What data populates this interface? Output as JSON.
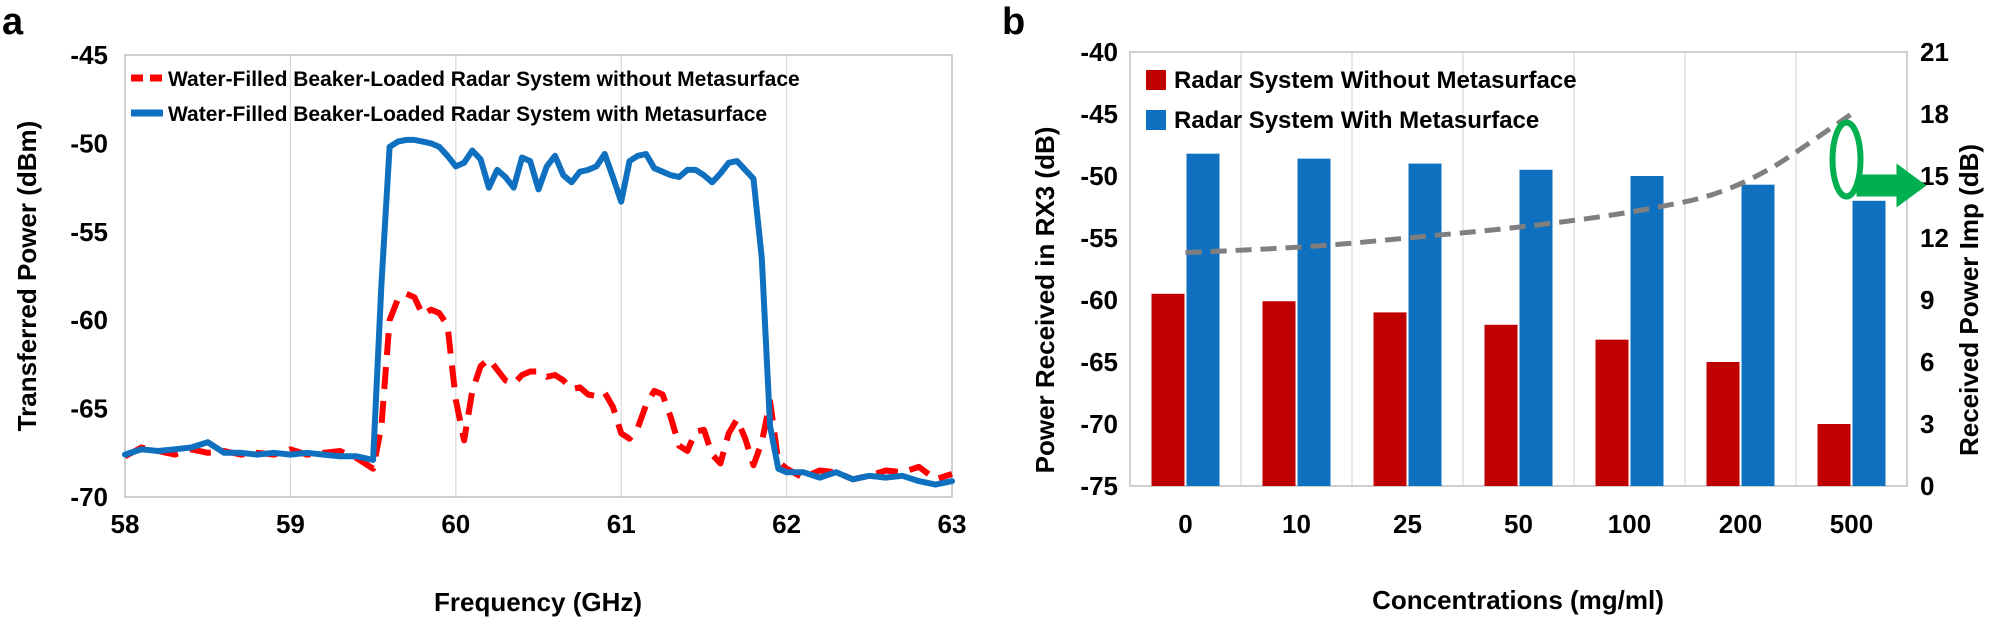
{
  "chart_data": [
    {
      "panel_label": "a",
      "type": "line",
      "xlabel": "Frequency (GHz)",
      "ylabel": "Transferred Power (dBm)",
      "xlim": [
        58,
        63
      ],
      "ylim": [
        -70,
        -45
      ],
      "xticks": [
        58,
        59,
        60,
        61,
        62,
        63
      ],
      "yticks": [
        -70,
        -65,
        -60,
        -55,
        -50,
        -45
      ],
      "grid": "vertical",
      "legend_position": "top",
      "series": [
        {
          "name": "Water-Filled Beaker-Loaded Radar System without Metasurface",
          "color": "#ff0000",
          "dash": "dashed",
          "x": [
            58.0,
            58.1,
            58.2,
            58.3,
            58.4,
            58.5,
            58.6,
            58.7,
            58.8,
            58.9,
            59.0,
            59.1,
            59.2,
            59.3,
            59.4,
            59.5,
            59.55,
            59.6,
            59.65,
            59.7,
            59.75,
            59.8,
            59.85,
            59.9,
            59.95,
            60.0,
            60.05,
            60.1,
            60.15,
            60.2,
            60.25,
            60.3,
            60.35,
            60.4,
            60.45,
            60.5,
            60.55,
            60.6,
            60.65,
            60.7,
            60.75,
            60.8,
            60.85,
            60.9,
            60.95,
            61.0,
            61.05,
            61.1,
            61.15,
            61.2,
            61.25,
            61.3,
            61.35,
            61.4,
            61.45,
            61.5,
            61.55,
            61.6,
            61.65,
            61.7,
            61.75,
            61.8,
            61.85,
            61.9,
            61.95,
            62.0,
            62.1,
            62.2,
            62.3,
            62.4,
            62.5,
            62.6,
            62.7,
            62.8,
            62.9,
            63.0
          ],
          "y": [
            -67.7,
            -67.2,
            -67.4,
            -67.6,
            -67.3,
            -67.5,
            -67.4,
            -67.6,
            -67.5,
            -67.6,
            -67.3,
            -67.6,
            -67.5,
            -67.4,
            -67.8,
            -68.4,
            -66.0,
            -60.0,
            -58.8,
            -58.5,
            -58.7,
            -59.7,
            -59.4,
            -59.6,
            -60.3,
            -64.5,
            -66.8,
            -64.0,
            -62.6,
            -62.2,
            -62.8,
            -63.4,
            -63.6,
            -63.1,
            -62.9,
            -62.9,
            -63.2,
            -63.1,
            -63.4,
            -63.9,
            -63.8,
            -64.2,
            -64.3,
            -64.1,
            -64.9,
            -66.4,
            -66.7,
            -66.1,
            -64.8,
            -64.0,
            -64.2,
            -65.5,
            -67.1,
            -67.4,
            -66.3,
            -66.2,
            -67.6,
            -68.1,
            -66.4,
            -65.6,
            -66.7,
            -68.2,
            -66.9,
            -64.6,
            -68.0,
            -68.4,
            -68.9,
            -68.5,
            -68.6,
            -69.0,
            -68.8,
            -68.5,
            -68.6,
            -68.3,
            -69.0,
            -68.7
          ]
        },
        {
          "name": "Water-Filled Beaker-Loaded Radar System with Metasurface",
          "color": "#1070c0",
          "dash": "solid",
          "x": [
            58.0,
            58.1,
            58.2,
            58.3,
            58.4,
            58.5,
            58.6,
            58.7,
            58.8,
            58.9,
            59.0,
            59.1,
            59.2,
            59.3,
            59.4,
            59.5,
            59.55,
            59.6,
            59.65,
            59.7,
            59.75,
            59.8,
            59.85,
            59.9,
            59.95,
            60.0,
            60.05,
            60.1,
            60.15,
            60.2,
            60.25,
            60.3,
            60.35,
            60.4,
            60.45,
            60.5,
            60.55,
            60.6,
            60.65,
            60.7,
            60.75,
            60.8,
            60.85,
            60.9,
            60.95,
            61.0,
            61.05,
            61.1,
            61.15,
            61.2,
            61.25,
            61.3,
            61.35,
            61.4,
            61.45,
            61.5,
            61.55,
            61.6,
            61.65,
            61.7,
            61.75,
            61.8,
            61.85,
            61.9,
            61.95,
            62.0,
            62.1,
            62.2,
            62.3,
            62.4,
            62.5,
            62.6,
            62.7,
            62.8,
            62.9,
            63.0
          ],
          "y": [
            -67.6,
            -67.3,
            -67.4,
            -67.3,
            -67.2,
            -66.9,
            -67.5,
            -67.5,
            -67.6,
            -67.5,
            -67.6,
            -67.5,
            -67.6,
            -67.7,
            -67.7,
            -67.9,
            -58.0,
            -50.2,
            -49.9,
            -49.8,
            -49.8,
            -49.9,
            -50.0,
            -50.2,
            -50.7,
            -51.3,
            -51.1,
            -50.4,
            -50.9,
            -52.5,
            -51.5,
            -51.9,
            -52.5,
            -50.8,
            -51.0,
            -52.6,
            -51.3,
            -50.7,
            -51.8,
            -52.2,
            -51.6,
            -51.5,
            -51.3,
            -50.6,
            -51.9,
            -53.3,
            -51.0,
            -50.7,
            -50.6,
            -51.4,
            -51.6,
            -51.8,
            -51.9,
            -51.5,
            -51.5,
            -51.8,
            -52.2,
            -51.7,
            -51.1,
            -51.0,
            -51.5,
            -52.0,
            -56.5,
            -66.0,
            -68.4,
            -68.6,
            -68.6,
            -68.9,
            -68.6,
            -69.0,
            -68.8,
            -68.9,
            -68.8,
            -69.1,
            -69.3,
            -69.1
          ]
        }
      ]
    },
    {
      "panel_label": "b",
      "type": "bar",
      "xlabel": "Concentrations (mg/ml)",
      "ylabel": "Power Received in RX3 (dB)",
      "y2label": "Received Power Imp (dB)",
      "ylim": [
        -75,
        -40
      ],
      "yticks": [
        -75,
        -70,
        -65,
        -60,
        -55,
        -50,
        -45,
        -40
      ],
      "y2lim": [
        0,
        21
      ],
      "y2ticks": [
        0,
        3,
        6,
        9,
        12,
        15,
        18,
        21
      ],
      "grid": "vertical",
      "legend_position": "top-left",
      "categories": [
        "0",
        "10",
        "25",
        "50",
        "100",
        "200",
        "500"
      ],
      "series": [
        {
          "name": "Radar System Without Metasurface",
          "color": "#c00000",
          "values": [
            -59.5,
            -60.1,
            -61.0,
            -62.0,
            -63.2,
            -65.0,
            -70.0
          ]
        },
        {
          "name": "Radar System With Metasurface",
          "color": "#1070c0",
          "values": [
            -48.2,
            -48.6,
            -49.0,
            -49.5,
            -50.0,
            -50.7,
            -52.0
          ]
        }
      ],
      "line_series": {
        "name": "Received Power Imp",
        "axis": "right",
        "color": "#7f7f7f",
        "dash": "dashed",
        "values": [
          11.3,
          11.5,
          12.0,
          12.5,
          13.2,
          14.3,
          18.0
        ]
      },
      "annotation": "green ellipse around the dashed curve with an arrow pointing to the right axis",
      "annotation_color": "#00b050"
    }
  ]
}
